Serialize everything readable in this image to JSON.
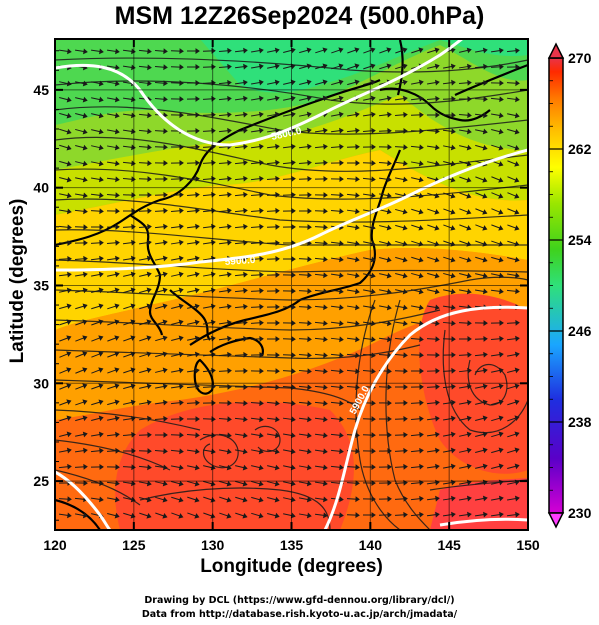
{
  "title": "MSM 12Z26Sep2024 (500.0hPa)",
  "xlabel": "Longitude (degrees)",
  "ylabel": "Latitude  (degrees)",
  "credits": {
    "line1": "Drawing by DCL (https://www.gfd-dennou.org/library/dcl/)",
    "line2": "Data from http://database.rish.kyoto-u.ac.jp/arch/jmadata/"
  },
  "map": {
    "lon_range": [
      120,
      150
    ],
    "lat_range": [
      22.5,
      47.6
    ],
    "x_ticks": [
      "120",
      "125",
      "130",
      "135",
      "140",
      "145",
      "150"
    ],
    "y_ticks": [
      "25",
      "30",
      "35",
      "40",
      "45"
    ],
    "grid": true,
    "contour_labels": [
      "5700.0",
      "5800.0",
      "5900.0",
      "5900.0"
    ]
  },
  "colorbar": {
    "ticks": [
      "230",
      "238",
      "246",
      "254",
      "262",
      "270"
    ],
    "range": [
      230,
      270
    ],
    "colors": [
      "#d400d4",
      "#5a00c8",
      "#1f2fe0",
      "#1aa6ff",
      "#2fe07a",
      "#3fd21c",
      "#9ae600",
      "#ffff00",
      "#ffc000",
      "#ff7a00",
      "#ff2a00",
      "#e8344a"
    ]
  }
}
